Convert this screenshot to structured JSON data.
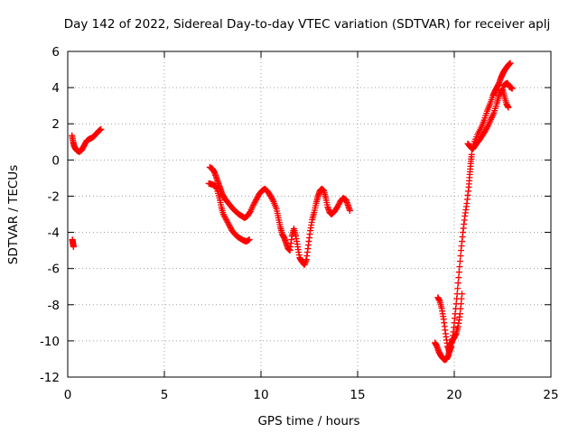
{
  "chart_data": {
    "type": "scatter",
    "title": "Day 142 of 2022, Sidereal Day-to-day VTEC variation (SDTVAR) for receiver aplj",
    "xlabel": "GPS time / hours",
    "ylabel": "SDTVAR / TECUs",
    "xlim": [
      0,
      25
    ],
    "ylim": [
      -12,
      6
    ],
    "x_ticks": [
      0,
      5,
      10,
      15,
      20,
      25
    ],
    "y_ticks": [
      -12,
      -10,
      -8,
      -6,
      -4,
      -2,
      0,
      2,
      4,
      6
    ],
    "grid": true,
    "marker": "+",
    "series_color": "#ff0000",
    "segments": [
      [
        [
          0.22,
          1.35
        ],
        [
          0.28,
          1.0
        ],
        [
          0.34,
          0.75
        ],
        [
          0.42,
          0.6
        ],
        [
          0.5,
          0.5
        ],
        [
          0.6,
          0.45
        ],
        [
          0.72,
          0.55
        ],
        [
          0.85,
          0.8
        ],
        [
          0.98,
          1.05
        ],
        [
          1.1,
          1.15
        ],
        [
          1.22,
          1.2
        ],
        [
          1.35,
          1.3
        ],
        [
          1.48,
          1.45
        ],
        [
          1.6,
          1.6
        ],
        [
          1.72,
          1.7
        ]
      ],
      [
        [
          0.24,
          -4.4
        ],
        [
          0.27,
          -4.6
        ],
        [
          0.3,
          -4.8
        ]
      ],
      [
        [
          7.35,
          -0.4
        ],
        [
          7.5,
          -0.5
        ],
        [
          7.6,
          -0.7
        ],
        [
          7.7,
          -1.0
        ],
        [
          7.8,
          -1.3
        ],
        [
          7.9,
          -1.6
        ],
        [
          8.0,
          -1.9
        ],
        [
          8.1,
          -2.1
        ],
        [
          8.25,
          -2.3
        ],
        [
          8.4,
          -2.5
        ],
        [
          8.55,
          -2.7
        ],
        [
          8.7,
          -2.85
        ],
        [
          8.85,
          -3.0
        ],
        [
          9.0,
          -3.1
        ],
        [
          9.15,
          -3.2
        ],
        [
          9.3,
          -3.1
        ],
        [
          9.45,
          -2.85
        ],
        [
          9.6,
          -2.5
        ],
        [
          9.75,
          -2.2
        ],
        [
          9.9,
          -1.9
        ],
        [
          10.05,
          -1.7
        ],
        [
          10.2,
          -1.6
        ],
        [
          10.35,
          -1.75
        ],
        [
          10.5,
          -2.0
        ],
        [
          10.65,
          -2.3
        ],
        [
          10.8,
          -2.7
        ],
        [
          10.9,
          -3.2
        ],
        [
          11.0,
          -3.7
        ],
        [
          11.1,
          -4.1
        ],
        [
          11.2,
          -4.3
        ],
        [
          11.3,
          -4.6
        ],
        [
          11.4,
          -4.9
        ],
        [
          11.5,
          -5.0
        ],
        [
          11.6,
          -4.2
        ],
        [
          11.7,
          -3.8
        ],
        [
          11.8,
          -4.2
        ],
        [
          11.9,
          -4.8
        ],
        [
          12.0,
          -5.4
        ],
        [
          12.1,
          -5.6
        ],
        [
          12.25,
          -5.8
        ],
        [
          12.35,
          -5.5
        ],
        [
          12.45,
          -4.7
        ],
        [
          12.55,
          -3.9
        ],
        [
          12.65,
          -3.3
        ],
        [
          12.75,
          -2.9
        ],
        [
          12.85,
          -2.4
        ],
        [
          12.95,
          -2.0
        ],
        [
          13.05,
          -1.7
        ],
        [
          13.15,
          -1.6
        ],
        [
          13.25,
          -1.7
        ],
        [
          13.35,
          -2.1
        ],
        [
          13.45,
          -2.6
        ],
        [
          13.55,
          -2.9
        ],
        [
          13.65,
          -3.0
        ],
        [
          13.8,
          -2.85
        ],
        [
          13.95,
          -2.6
        ],
        [
          14.1,
          -2.3
        ],
        [
          14.25,
          -2.1
        ],
        [
          14.4,
          -2.2
        ],
        [
          14.5,
          -2.5
        ],
        [
          14.6,
          -2.8
        ]
      ],
      [
        [
          7.3,
          -1.3
        ],
        [
          7.45,
          -1.35
        ],
        [
          7.6,
          -1.4
        ],
        [
          7.72,
          -1.6
        ],
        [
          7.85,
          -2.1
        ],
        [
          7.95,
          -2.6
        ],
        [
          8.05,
          -3.0
        ],
        [
          8.2,
          -3.3
        ],
        [
          8.35,
          -3.6
        ],
        [
          8.5,
          -3.9
        ],
        [
          8.65,
          -4.1
        ],
        [
          8.8,
          -4.25
        ],
        [
          8.95,
          -4.35
        ],
        [
          9.1,
          -4.45
        ],
        [
          9.25,
          -4.5
        ],
        [
          9.4,
          -4.4
        ]
      ],
      [
        [
          19.0,
          -10.1
        ],
        [
          19.1,
          -10.3
        ],
        [
          19.2,
          -10.6
        ],
        [
          19.3,
          -10.8
        ],
        [
          19.4,
          -10.95
        ],
        [
          19.5,
          -11.05
        ],
        [
          19.6,
          -11.0
        ],
        [
          19.7,
          -10.8
        ],
        [
          19.75,
          -10.5
        ],
        [
          19.8,
          -10.2
        ],
        [
          19.9,
          -10.0
        ],
        [
          20.0,
          -9.8
        ],
        [
          20.1,
          -9.6
        ],
        [
          20.2,
          -9.2
        ],
        [
          20.3,
          -8.5
        ],
        [
          20.4,
          -7.4
        ]
      ],
      [
        [
          19.15,
          -7.6
        ],
        [
          19.25,
          -7.8
        ],
        [
          19.35,
          -8.2
        ],
        [
          19.45,
          -8.8
        ],
        [
          19.55,
          -9.6
        ],
        [
          19.65,
          -10.3
        ],
        [
          19.75,
          -10.6
        ],
        [
          19.85,
          -10.3
        ],
        [
          19.95,
          -9.5
        ],
        [
          20.05,
          -8.5
        ],
        [
          20.15,
          -7.4
        ],
        [
          20.25,
          -6.2
        ],
        [
          20.35,
          -5.0
        ],
        [
          20.45,
          -4.0
        ],
        [
          20.55,
          -3.1
        ],
        [
          20.65,
          -2.4
        ],
        [
          20.75,
          -1.5
        ],
        [
          20.8,
          -0.8
        ],
        [
          20.85,
          -0.2
        ],
        [
          20.9,
          0.3
        ]
      ],
      [
        [
          20.7,
          0.9
        ],
        [
          20.85,
          0.7
        ],
        [
          20.95,
          0.6
        ],
        [
          21.05,
          0.75
        ],
        [
          21.15,
          0.9
        ],
        [
          21.3,
          1.1
        ],
        [
          21.45,
          1.35
        ],
        [
          21.6,
          1.6
        ],
        [
          21.75,
          1.9
        ],
        [
          21.9,
          2.25
        ],
        [
          22.05,
          2.6
        ],
        [
          22.2,
          3.1
        ],
        [
          22.3,
          3.5
        ],
        [
          22.4,
          3.8
        ],
        [
          22.5,
          3.9
        ],
        [
          22.6,
          3.5
        ],
        [
          22.7,
          3.1
        ],
        [
          22.8,
          2.9
        ]
      ],
      [
        [
          21.0,
          0.9
        ],
        [
          21.2,
          1.4
        ],
        [
          21.4,
          1.8
        ],
        [
          21.55,
          2.2
        ],
        [
          21.7,
          2.7
        ],
        [
          21.85,
          3.1
        ],
        [
          22.0,
          3.55
        ],
        [
          22.1,
          3.8
        ],
        [
          22.2,
          4.0
        ],
        [
          22.3,
          4.2
        ],
        [
          22.4,
          4.5
        ],
        [
          22.5,
          4.75
        ],
        [
          22.6,
          4.95
        ],
        [
          22.7,
          5.1
        ],
        [
          22.8,
          5.25
        ],
        [
          22.9,
          5.35
        ]
      ],
      [
        [
          22.55,
          4.1
        ],
        [
          22.65,
          4.2
        ],
        [
          22.75,
          4.25
        ],
        [
          22.85,
          4.05
        ],
        [
          22.95,
          4.0
        ],
        [
          23.0,
          3.95
        ]
      ]
    ]
  }
}
